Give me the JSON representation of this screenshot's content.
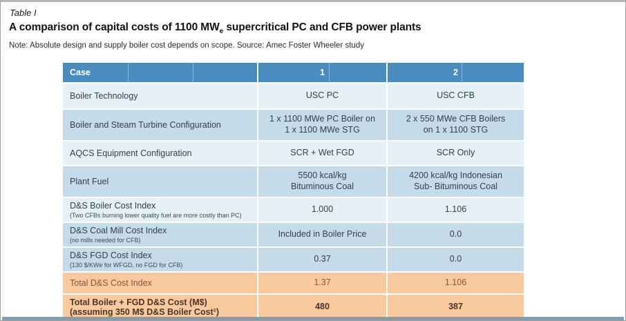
{
  "header_block": {
    "table_label": "Table I",
    "title": {
      "prefix": "A comparison of capital costs of 1100 MW",
      "subscript": "e",
      "suffix": " supercritical PC and CFB power plants"
    },
    "note": "Note: Absolute design and supply boiler cost depends on scope. Source: Amec Foster Wheeler study"
  },
  "table": {
    "header": {
      "case": "Case",
      "col1": "1",
      "col2": "2"
    },
    "rows": [
      {
        "tone": "light",
        "label": "Boiler Technology",
        "sublabel": "",
        "col1": "USC PC",
        "col2": "USC CFB"
      },
      {
        "tone": "dark",
        "label": "Boiler and Steam Turbine Configuration",
        "sublabel": "",
        "col1": "1 x 1100 MWe PC Boiler on\n1 x 1100 MWe STG",
        "col2": "2 x 550 MWe CFB Boilers\non 1 x 1100 STG"
      },
      {
        "tone": "light",
        "label": "AQCS Equipment Configuration",
        "sublabel": "",
        "col1": "SCR + Wet FGD",
        "col2": "SCR Only"
      },
      {
        "tone": "dark",
        "label": "Plant Fuel",
        "sublabel": "",
        "col1": "5500 kcal/kg\nBituminous Coal",
        "col2": "4200 kcal/kg Indonesian\nSub- Bituminous Coal"
      },
      {
        "tone": "light",
        "label": "D&S Boiler Cost Index",
        "sublabel": "(Two CFBs burning lower quality fuel are more costly than PC)",
        "col1": "1.000",
        "col2": "1.106"
      },
      {
        "tone": "dark",
        "label": "D&S Coal Mill Cost Index",
        "sublabel": "(no mills needed for CFB)",
        "col1": "Included in Boiler Price",
        "col2": "0.0"
      },
      {
        "tone": "dark",
        "label": "D&S FGD Cost Index",
        "sublabel": "(130 $/KWe for WFGD, no FGD for CFB)",
        "col1": "0.37",
        "col2": "0.0"
      },
      {
        "tone": "total",
        "label": "Total D&S Cost Index",
        "sublabel": "",
        "col1": "1.37",
        "col2": "1.106"
      },
      {
        "tone": "grand",
        "label": "Total Boiler + FGD D&S Cost (M$)\n(assuming 350 M$ D&S Boiler Cost¹)",
        "sublabel": "",
        "col1": "480",
        "col2": "387"
      }
    ]
  },
  "colors": {
    "header_bg": "#4a8cbe",
    "row_light": "#e6f0f7",
    "row_dark": "#c6dbea",
    "row_total": "#f9c9a0",
    "text_dark": "#33404d",
    "text_total": "#96503a",
    "text_grand": "#4a3526",
    "bottom_bar": "#7f9db3"
  }
}
